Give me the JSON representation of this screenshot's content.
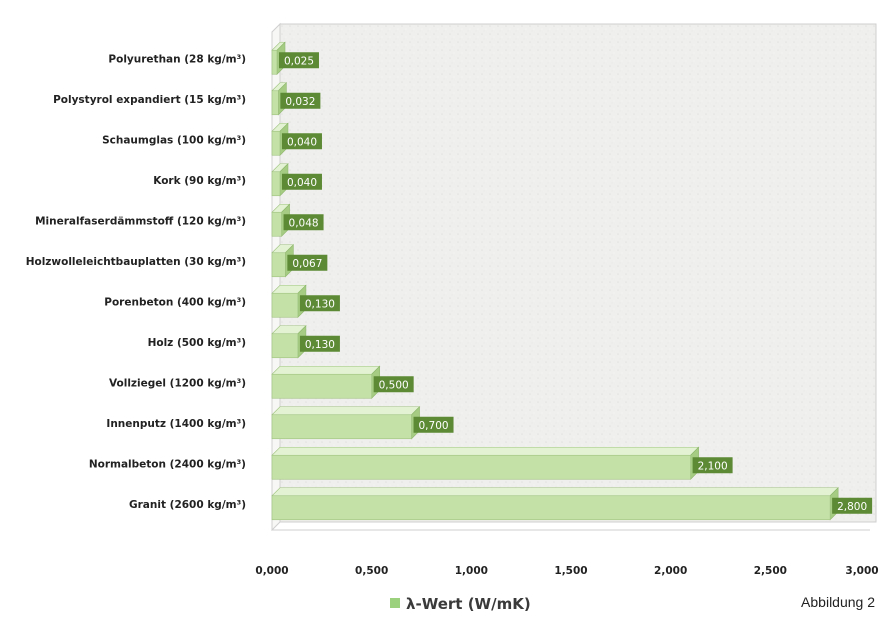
{
  "chart_data": {
    "type": "bar",
    "orientation": "horizontal",
    "categories": [
      "Granit (2600 kg/m³)",
      "Normalbeton (2400 kg/m³)",
      "Innenputz (1400 kg/m³)",
      "Vollziegel (1200 kg/m³)",
      "Holz (500 kg/m³)",
      "Porenbeton (400 kg/m³)",
      "Holzwolleleichtbauplatten (30 kg/m³)",
      "Mineralfaserdämmstoff (120 kg/m³)",
      "Kork (90 kg/m³)",
      "Schaumglas (100 kg/m³)",
      "Polystyrol expandiert (15 kg/m³)",
      "Polyurethan (28 kg/m³)"
    ],
    "series": [
      {
        "name": "λ-Wert (W/mK)",
        "values": [
          2.8,
          2.1,
          0.7,
          0.5,
          0.13,
          0.13,
          0.067,
          0.048,
          0.04,
          0.04,
          0.032,
          0.025
        ],
        "value_labels": [
          "2,800",
          "2,100",
          "0,700",
          "0,500",
          "0,130",
          "0,130",
          "0,067",
          "0,048",
          "0,040",
          "0,040",
          "0,032",
          "0,025"
        ]
      }
    ],
    "xlim": [
      0,
      3
    ],
    "x_ticks": [
      "0,000",
      "0,500",
      "1,000",
      "1,500",
      "2,000",
      "2,500",
      "3,000"
    ],
    "legend_position": "bottom",
    "grid": false,
    "colors": {
      "bar_fill": "#c4e2a8",
      "bar_top": "#e2f2d2",
      "bar_end": "#a6cc84",
      "label_box": "#5d8a35",
      "legend_swatch": "#9bd07c"
    }
  },
  "caption": "Abbildung 2"
}
